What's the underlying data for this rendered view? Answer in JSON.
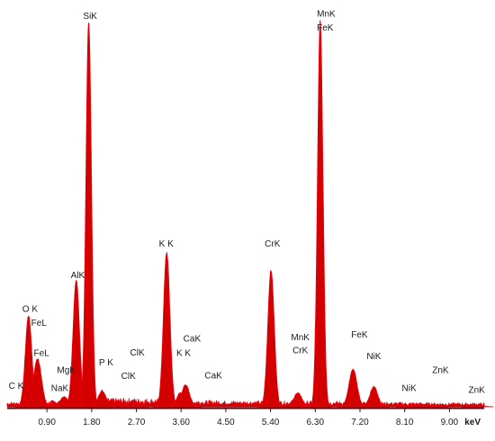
{
  "chart_data": {
    "type": "area",
    "title": "",
    "xlabel": "keV",
    "ylabel": "",
    "xlim": [
      0.1,
      9.7
    ],
    "ylim": [
      0,
      1000
    ],
    "grid": false,
    "legend": "none",
    "x_ticks": [
      "0.90",
      "1.80",
      "2.70",
      "3.60",
      "4.50",
      "5.40",
      "6.30",
      "7.20",
      "8.10",
      "9.00"
    ],
    "x_tick_values": [
      0.9,
      1.8,
      2.7,
      3.6,
      4.5,
      5.4,
      6.3,
      7.2,
      8.1,
      9.0
    ],
    "colors": {
      "fill": "#d40000",
      "stroke": "#e8000f",
      "baseline": "#5a0a0a",
      "text": "#1a1a1a"
    },
    "peaks": [
      {
        "label": "C K",
        "x": 0.28,
        "height": 0
      },
      {
        "label": "O K",
        "x": 0.53,
        "height": 230
      },
      {
        "label": "FeL",
        "x": 0.71,
        "height": 120
      },
      {
        "label": "NaK",
        "x": 1.04,
        "height": 12
      },
      {
        "label": "MgK",
        "x": 1.25,
        "height": 25
      },
      {
        "label": "AlK",
        "x": 1.49,
        "height": 320
      },
      {
        "label": "SiK",
        "x": 1.74,
        "height": 970
      },
      {
        "label": "P K",
        "x": 2.01,
        "height": 40
      },
      {
        "label": "ClK",
        "x": 2.62,
        "height": 15
      },
      {
        "label": "K K",
        "x": 3.31,
        "height": 390
      },
      {
        "label": "K K",
        "x": 3.59,
        "height": 35
      },
      {
        "label": "CaK",
        "x": 3.69,
        "height": 55
      },
      {
        "label": "CrK",
        "x": 5.41,
        "height": 345
      },
      {
        "label": "CrK",
        "x": 5.95,
        "height": 35
      },
      {
        "label": "MnK",
        "x": 5.9,
        "height": 20
      },
      {
        "label": "MnK",
        "x": 6.4,
        "height": 975
      },
      {
        "label": "FeK",
        "x": 7.06,
        "height": 95
      },
      {
        "label": "NiK",
        "x": 7.48,
        "height": 50
      },
      {
        "label": "NiK",
        "x": 8.26,
        "height": 6
      },
      {
        "label": "ZnK",
        "x": 8.64,
        "height": 4
      },
      {
        "label": "ZnK",
        "x": 9.57,
        "height": 3
      }
    ],
    "annotations": [
      {
        "text": "C K",
        "x": 0.28,
        "y": 45
      },
      {
        "text": "O K",
        "x": 0.56,
        "y": 240
      },
      {
        "text": "FeL",
        "x": 0.74,
        "y": 205
      },
      {
        "text": "FeL",
        "x": 0.79,
        "y": 128
      },
      {
        "text": "NaK",
        "x": 1.16,
        "y": 40
      },
      {
        "text": "MgK",
        "x": 1.29,
        "y": 85
      },
      {
        "text": "AlK",
        "x": 1.52,
        "y": 325
      },
      {
        "text": "SiK",
        "x": 1.77,
        "y": 980
      },
      {
        "text": "P K",
        "x": 2.09,
        "y": 105
      },
      {
        "text": "ClK",
        "x": 2.72,
        "y": 130
      },
      {
        "text": "ClK",
        "x": 2.54,
        "y": 70
      },
      {
        "text": "K K",
        "x": 3.3,
        "y": 405
      },
      {
        "text": "CaK",
        "x": 3.82,
        "y": 165
      },
      {
        "text": "K K",
        "x": 3.65,
        "y": 128
      },
      {
        "text": "CaK",
        "x": 4.25,
        "y": 72
      },
      {
        "text": "CrK",
        "x": 5.44,
        "y": 405
      },
      {
        "text": "MnK",
        "x": 6.0,
        "y": 168
      },
      {
        "text": "CrK",
        "x": 6.0,
        "y": 135
      },
      {
        "text": "MnK",
        "x": 6.52,
        "y": 985
      },
      {
        "text": "FeK",
        "x": 6.5,
        "y": 950
      },
      {
        "text": "FeK",
        "x": 7.19,
        "y": 175
      },
      {
        "text": "NiK",
        "x": 7.48,
        "y": 120
      },
      {
        "text": "ZnK",
        "x": 8.82,
        "y": 85
      },
      {
        "text": "NiK",
        "x": 8.19,
        "y": 40
      },
      {
        "text": "ZnK",
        "x": 9.55,
        "y": 35
      }
    ],
    "unit_label": "keV"
  }
}
